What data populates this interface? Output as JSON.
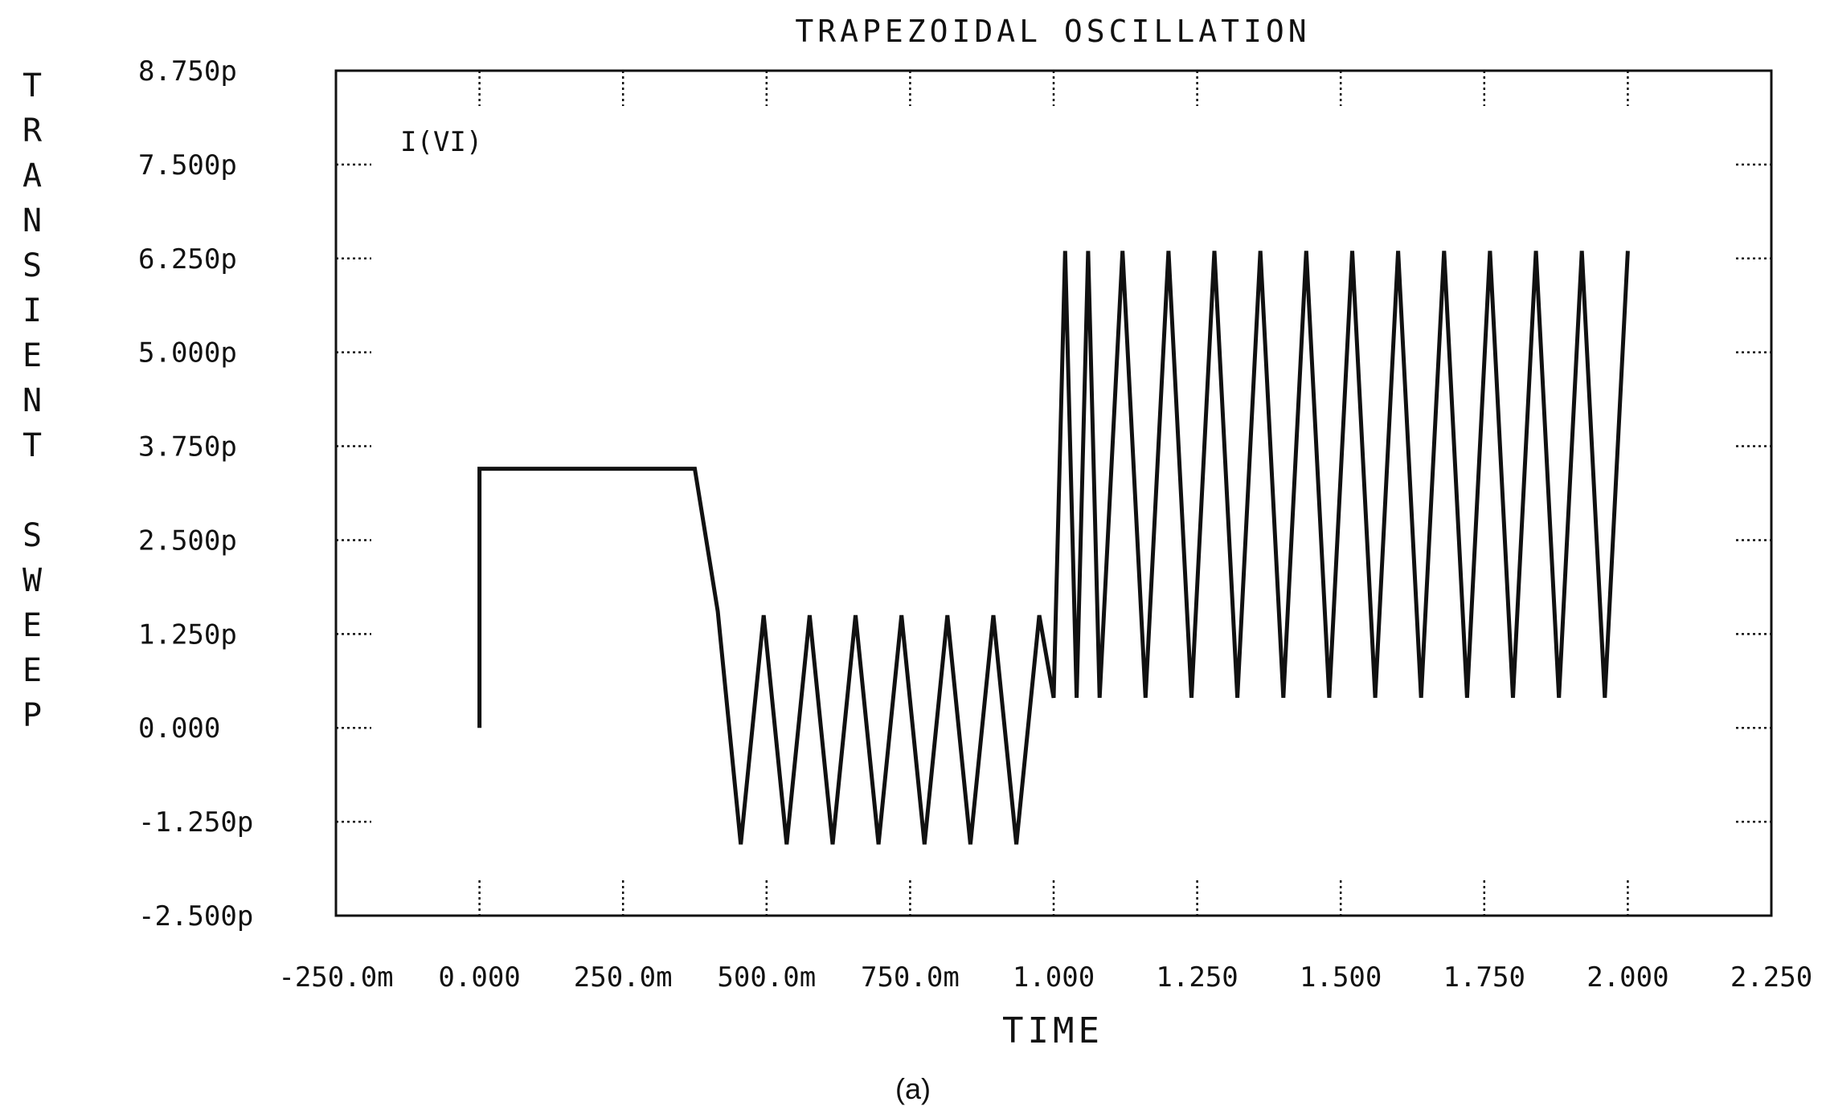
{
  "chart_data": {
    "type": "line",
    "title": "TRAPEZOIDAL OSCILLATION",
    "ylabel": "TRANSIENT SWEEP",
    "xlabel": "TIME",
    "caption": "(a)",
    "series_label": "I(VI)",
    "xlim": [
      -0.25,
      2.25
    ],
    "ylim": [
      -2.5,
      8.75
    ],
    "x_ticks": [
      -0.25,
      0,
      0.25,
      0.5,
      0.75,
      1.0,
      1.25,
      1.5,
      1.75,
      2.0,
      2.25
    ],
    "x_tick_labels": [
      "-250.0m",
      "0.000",
      "250.0m",
      "500.0m",
      "750.0m",
      "1.000",
      "1.250",
      "1.500",
      "1.750",
      "2.000",
      "2.250"
    ],
    "y_ticks": [
      8.75,
      7.5,
      6.25,
      5.0,
      3.75,
      2.5,
      1.25,
      0.0,
      -1.25,
      -2.5
    ],
    "y_tick_labels": [
      "8.750p",
      "7.500p",
      "6.250p",
      "5.000p",
      "3.750p",
      "2.500p",
      "1.250p",
      "0.000",
      "-1.250p",
      "-2.500p"
    ],
    "grid": false,
    "series": [
      {
        "name": "I(VI)",
        "x": [
          0.0,
          0.0,
          0.375,
          0.415,
          0.455,
          0.495,
          0.535,
          0.575,
          0.615,
          0.655,
          0.695,
          0.735,
          0.775,
          0.815,
          0.855,
          0.895,
          0.935,
          0.975,
          1.0,
          1.02,
          1.04,
          1.06,
          1.08,
          1.12,
          1.16,
          1.2,
          1.24,
          1.28,
          1.32,
          1.36,
          1.4,
          1.44,
          1.48,
          1.52,
          1.56,
          1.6,
          1.64,
          1.68,
          1.72,
          1.76,
          1.8,
          1.84,
          1.88,
          1.92,
          1.96,
          2.0
        ],
        "y": [
          0.0,
          3.45,
          3.45,
          1.55,
          -1.55,
          1.5,
          -1.55,
          1.5,
          -1.55,
          1.5,
          -1.55,
          1.5,
          -1.55,
          1.5,
          -1.55,
          1.5,
          -1.55,
          1.5,
          0.4,
          6.35,
          0.4,
          6.35,
          0.4,
          6.35,
          0.4,
          6.35,
          0.4,
          6.35,
          0.4,
          6.35,
          0.4,
          6.35,
          0.4,
          6.35,
          0.4,
          6.35,
          0.4,
          6.35,
          0.4,
          6.35,
          0.4,
          6.35,
          0.4,
          6.35,
          0.4,
          6.35
        ]
      }
    ]
  }
}
